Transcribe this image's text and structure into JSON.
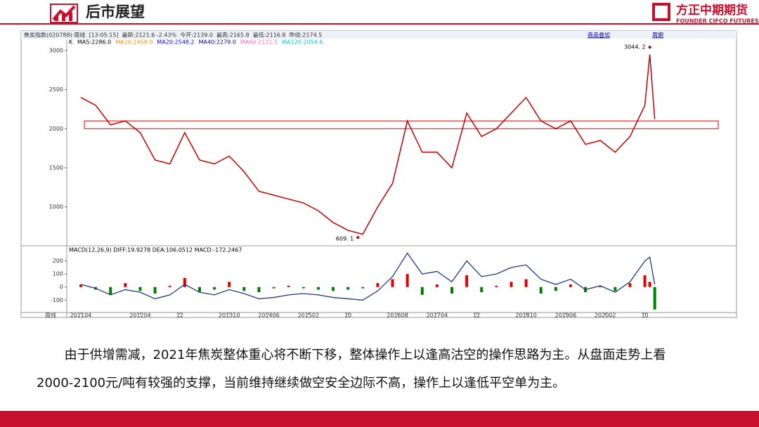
{
  "header": {
    "title": "后市展望",
    "logo": "方正中期期货",
    "logo_en": "FOUNDER CIFCO FUTURES"
  },
  "toolbar": {
    "info": "焦炭指数(020788)·周线  [13:05:15]  最新:2121.6 -2.43%  今开:2139.0  最高:2165.8  最低:2116.8  昨结:2174.5",
    "buttons": [
      "商品叠加",
      "周期"
    ]
  },
  "chart_data": [
    {
      "type": "line",
      "kind_label": "K",
      "color": "#c00000",
      "ma_legend": [
        {
          "label": "MA5:2286.0",
          "color": "#000000"
        },
        {
          "label": "MA10:2458.0",
          "color": "#ff8c00"
        },
        {
          "label": "MA20:2548.2",
          "color": "#0000ff"
        },
        {
          "label": "MA40:2279.0",
          "color": "#000080"
        },
        {
          "label": "MA60:2121.5",
          "color": "#ff66cc"
        },
        {
          "label": "MA120:2054.6",
          "color": "#00c8c8"
        }
      ],
      "x": [
        "2011-04",
        "2011-07",
        "2011-10",
        "2012-01",
        "2012-04",
        "2012-07",
        "2012-10",
        "2013-01",
        "2013-04",
        "2013-07",
        "2013-10",
        "2014-01",
        "2014-04",
        "2014-07",
        "2014-10",
        "2015-01",
        "2015-04",
        "2015-07",
        "2015-10",
        "2016-01",
        "2016-04",
        "2016-07",
        "2016-10",
        "2017-01",
        "2017-04",
        "2017-07",
        "2017-10",
        "2018-01",
        "2018-04",
        "2018-07",
        "2018-10",
        "2019-01",
        "2019-04",
        "2019-07",
        "2019-10",
        "2020-01",
        "2020-04",
        "2020-07",
        "2020-10",
        "2020-11",
        "2020-12"
      ],
      "values": [
        2400,
        2300,
        2050,
        2100,
        1950,
        1600,
        1550,
        1950,
        1600,
        1550,
        1650,
        1450,
        1200,
        1150,
        1100,
        1050,
        950,
        800,
        700,
        650,
        1000,
        1300,
        2100,
        1700,
        1700,
        1500,
        2200,
        1900,
        2000,
        2200,
        2400,
        2100,
        2000,
        2100,
        1800,
        1850,
        1700,
        1900,
        2300,
        2950,
        2121.6
      ],
      "annotations": [
        {
          "x": "2020-11",
          "value": 3044.2,
          "label": "3044. 2"
        },
        {
          "x": "2015-12",
          "value": 609.1,
          "label": "609. 1"
        }
      ],
      "highlight_range": [
        2000,
        2100
      ],
      "highlight_color": "#e03030",
      "ylim": [
        520,
        3090
      ],
      "yticks": [
        1000,
        1500,
        2000,
        2500,
        3000
      ],
      "grid": false
    },
    {
      "type": "bar",
      "legend": "MACD(12,26,9)  DIFF:19.9278  DEA:106.0512  MACD:-172.2467",
      "up_color": "#e00000",
      "down_color": "#008000",
      "x": [
        "2011-04",
        "2011-07",
        "2011-10",
        "2012-01",
        "2012-04",
        "2012-07",
        "2012-10",
        "2013-01",
        "2013-04",
        "2013-07",
        "2013-10",
        "2014-01",
        "2014-04",
        "2014-07",
        "2014-10",
        "2015-01",
        "2015-04",
        "2015-07",
        "2015-10",
        "2016-01",
        "2016-04",
        "2016-07",
        "2016-10",
        "2017-01",
        "2017-04",
        "2017-07",
        "2017-10",
        "2018-01",
        "2018-04",
        "2018-07",
        "2018-10",
        "2019-01",
        "2019-04",
        "2019-07",
        "2019-10",
        "2020-01",
        "2020-04",
        "2020-07",
        "2020-10",
        "2020-11",
        "2020-12"
      ],
      "values": [
        20,
        -20,
        -60,
        30,
        -30,
        -50,
        10,
        70,
        -40,
        -20,
        40,
        -30,
        -40,
        -10,
        10,
        -10,
        -20,
        -30,
        -20,
        -10,
        30,
        60,
        100,
        -60,
        20,
        -50,
        90,
        -40,
        10,
        40,
        60,
        -50,
        -30,
        20,
        -40,
        10,
        -30,
        30,
        90,
        40,
        -172.2467
      ],
      "line": {
        "color": "#1f3a7a",
        "values": [
          20,
          -10,
          -60,
          -20,
          -40,
          -90,
          -60,
          20,
          -40,
          -60,
          -20,
          -50,
          -90,
          -80,
          -60,
          -50,
          -60,
          -80,
          -90,
          -100,
          -30,
          80,
          260,
          100,
          120,
          40,
          200,
          80,
          100,
          150,
          170,
          60,
          20,
          60,
          -20,
          10,
          -40,
          40,
          200,
          230,
          19.9278
        ]
      },
      "x_label": "周线",
      "xticks": [
        {
          "value": "2011-04",
          "label": "201104"
        },
        {
          "value": "2012-04",
          "label": "201204"
        },
        {
          "value": "2012-12",
          "label": "12"
        },
        {
          "value": "2013-10",
          "label": "201310"
        },
        {
          "value": "2014-06",
          "label": "201406"
        },
        {
          "value": "2015-02",
          "label": "201502"
        },
        {
          "value": "2015-10",
          "label": "10"
        },
        {
          "value": "2016-08",
          "label": "201608"
        },
        {
          "value": "2017-04",
          "label": "201704"
        },
        {
          "value": "2017-12",
          "label": "12"
        },
        {
          "value": "2018-10",
          "label": "201810"
        },
        {
          "value": "2019-06",
          "label": "201906"
        },
        {
          "value": "2020-02",
          "label": "202002"
        },
        {
          "value": "2020-10",
          "label": "10"
        }
      ],
      "ylim": [
        -190,
        300
      ],
      "yticks": [
        -100,
        0,
        100,
        200
      ]
    }
  ],
  "body": {
    "text": "由于供增需减，2021年焦炭整体重心将不断下移，整体操作上以逢高沽空的操作思路为主。从盘面走势上看2000-2100元/吨有较强的支撑，当前维持继续做空安全边际不高，操作上以逢低平空单为主。"
  }
}
